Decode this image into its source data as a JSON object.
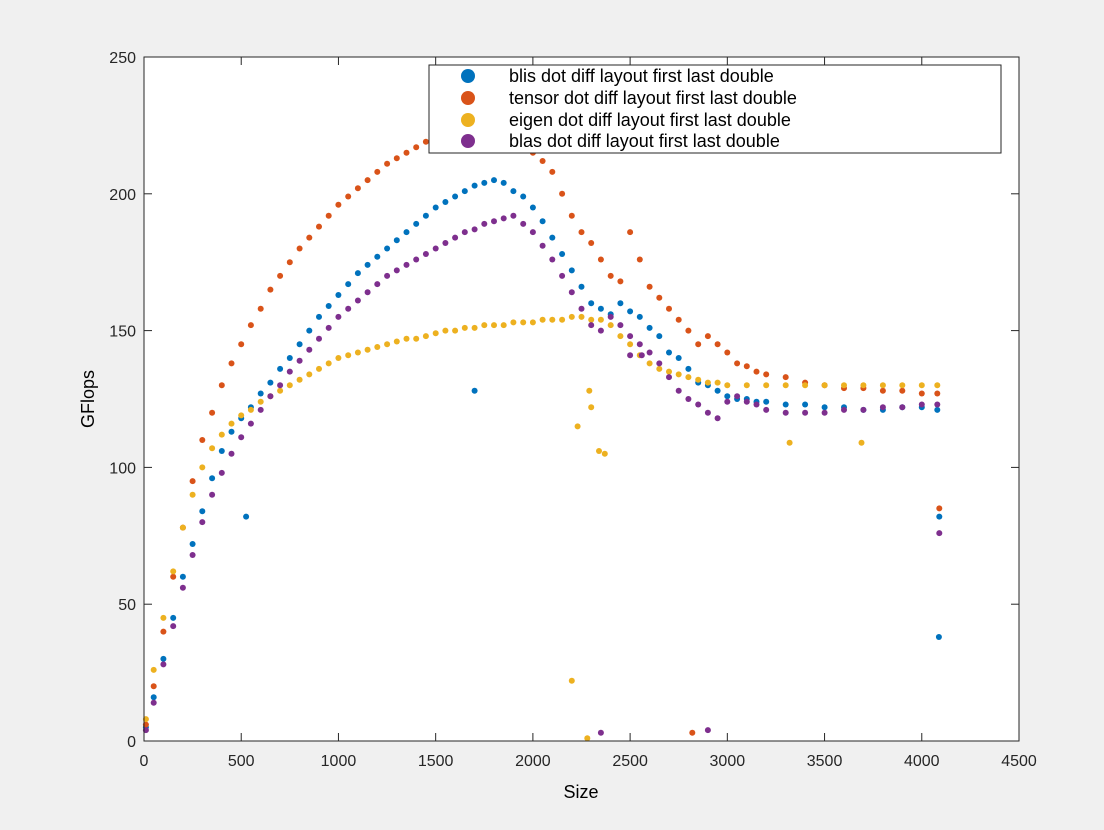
{
  "chart_data": {
    "type": "scatter",
    "xlabel": "Size",
    "ylabel": "GFlops",
    "xlim": [
      0,
      4500
    ],
    "ylim": [
      0,
      250
    ],
    "xticks": [
      "0",
      "500",
      "1000",
      "1500",
      "2000",
      "2500",
      "3000",
      "3500",
      "4000",
      "4500"
    ],
    "yticks": [
      "0",
      "50",
      "100",
      "150",
      "200",
      "250"
    ],
    "grid": false,
    "legend_position": "top-right",
    "series": [
      {
        "name": "blis dot diff layout first last double",
        "color": "#0072bd",
        "points": [
          [
            10,
            5
          ],
          [
            50,
            16
          ],
          [
            100,
            30
          ],
          [
            150,
            45
          ],
          [
            200,
            60
          ],
          [
            250,
            72
          ],
          [
            300,
            84
          ],
          [
            350,
            96
          ],
          [
            400,
            106
          ],
          [
            450,
            113
          ],
          [
            500,
            118
          ],
          [
            550,
            122
          ],
          [
            600,
            127
          ],
          [
            650,
            131
          ],
          [
            700,
            136
          ],
          [
            750,
            140
          ],
          [
            800,
            145
          ],
          [
            850,
            150
          ],
          [
            900,
            155
          ],
          [
            950,
            159
          ],
          [
            1000,
            163
          ],
          [
            1050,
            167
          ],
          [
            1100,
            171
          ],
          [
            1150,
            174
          ],
          [
            1200,
            177
          ],
          [
            1250,
            180
          ],
          [
            1300,
            183
          ],
          [
            1350,
            186
          ],
          [
            1400,
            189
          ],
          [
            1450,
            192
          ],
          [
            1500,
            195
          ],
          [
            1550,
            197
          ],
          [
            1600,
            199
          ],
          [
            1650,
            201
          ],
          [
            1700,
            203
          ],
          [
            1750,
            204
          ],
          [
            1800,
            205
          ],
          [
            1850,
            204
          ],
          [
            1900,
            201
          ],
          [
            1950,
            199
          ],
          [
            2000,
            195
          ],
          [
            2050,
            190
          ],
          [
            2100,
            184
          ],
          [
            2150,
            178
          ],
          [
            2200,
            172
          ],
          [
            2250,
            166
          ],
          [
            2300,
            160
          ],
          [
            2350,
            158
          ],
          [
            2400,
            156
          ],
          [
            2450,
            160
          ],
          [
            2500,
            157
          ],
          [
            2550,
            155
          ],
          [
            2600,
            151
          ],
          [
            2650,
            148
          ],
          [
            2700,
            142
          ],
          [
            2750,
            140
          ],
          [
            2800,
            136
          ],
          [
            2850,
            131
          ],
          [
            2900,
            130
          ],
          [
            2950,
            128
          ],
          [
            3000,
            126
          ],
          [
            3050,
            125
          ],
          [
            3100,
            125
          ],
          [
            3150,
            124
          ],
          [
            3200,
            124
          ],
          [
            3300,
            123
          ],
          [
            3400,
            123
          ],
          [
            3500,
            122
          ],
          [
            3600,
            122
          ],
          [
            3700,
            121
          ],
          [
            3800,
            121
          ],
          [
            3900,
            122
          ],
          [
            4000,
            122
          ],
          [
            4080,
            121
          ],
          [
            4090,
            82
          ],
          [
            4088,
            38
          ],
          [
            1700,
            128
          ],
          [
            525,
            82
          ]
        ]
      },
      {
        "name": "tensor dot diff layout first last double",
        "color": "#d95319",
        "points": [
          [
            10,
            6
          ],
          [
            50,
            20
          ],
          [
            100,
            40
          ],
          [
            150,
            60
          ],
          [
            200,
            78
          ],
          [
            250,
            95
          ],
          [
            300,
            110
          ],
          [
            350,
            120
          ],
          [
            400,
            130
          ],
          [
            450,
            138
          ],
          [
            500,
            145
          ],
          [
            550,
            152
          ],
          [
            600,
            158
          ],
          [
            650,
            165
          ],
          [
            700,
            170
          ],
          [
            750,
            175
          ],
          [
            800,
            180
          ],
          [
            850,
            184
          ],
          [
            900,
            188
          ],
          [
            950,
            192
          ],
          [
            1000,
            196
          ],
          [
            1050,
            199
          ],
          [
            1100,
            202
          ],
          [
            1150,
            205
          ],
          [
            1200,
            208
          ],
          [
            1250,
            211
          ],
          [
            1300,
            213
          ],
          [
            1350,
            215
          ],
          [
            1400,
            217
          ],
          [
            1450,
            219
          ],
          [
            1500,
            221
          ],
          [
            1550,
            222
          ],
          [
            1600,
            223
          ],
          [
            1650,
            224
          ],
          [
            1700,
            225
          ],
          [
            1750,
            226
          ],
          [
            1800,
            226
          ],
          [
            1850,
            222
          ],
          [
            1900,
            218
          ],
          [
            1950,
            216
          ],
          [
            2000,
            215
          ],
          [
            2050,
            212
          ],
          [
            2100,
            208
          ],
          [
            2150,
            200
          ],
          [
            2200,
            192
          ],
          [
            2250,
            186
          ],
          [
            2300,
            182
          ],
          [
            2350,
            176
          ],
          [
            2400,
            170
          ],
          [
            2450,
            168
          ],
          [
            2500,
            186
          ],
          [
            2550,
            176
          ],
          [
            2600,
            166
          ],
          [
            2650,
            162
          ],
          [
            2700,
            158
          ],
          [
            2750,
            154
          ],
          [
            2800,
            150
          ],
          [
            2850,
            145
          ],
          [
            2900,
            148
          ],
          [
            2950,
            145
          ],
          [
            3000,
            142
          ],
          [
            3050,
            138
          ],
          [
            3100,
            137
          ],
          [
            3150,
            135
          ],
          [
            3200,
            134
          ],
          [
            3300,
            133
          ],
          [
            3400,
            131
          ],
          [
            3500,
            130
          ],
          [
            3600,
            129
          ],
          [
            3700,
            129
          ],
          [
            3800,
            128
          ],
          [
            3900,
            128
          ],
          [
            4000,
            127
          ],
          [
            4080,
            127
          ],
          [
            4090,
            85
          ],
          [
            2820,
            3
          ]
        ]
      },
      {
        "name": "eigen dot diff layout first last double",
        "color": "#edb120",
        "points": [
          [
            10,
            8
          ],
          [
            50,
            26
          ],
          [
            100,
            45
          ],
          [
            150,
            62
          ],
          [
            200,
            78
          ],
          [
            250,
            90
          ],
          [
            300,
            100
          ],
          [
            350,
            107
          ],
          [
            400,
            112
          ],
          [
            450,
            116
          ],
          [
            500,
            119
          ],
          [
            550,
            121
          ],
          [
            600,
            124
          ],
          [
            650,
            126
          ],
          [
            700,
            128
          ],
          [
            750,
            130
          ],
          [
            800,
            132
          ],
          [
            850,
            134
          ],
          [
            900,
            136
          ],
          [
            950,
            138
          ],
          [
            1000,
            140
          ],
          [
            1050,
            141
          ],
          [
            1100,
            142
          ],
          [
            1150,
            143
          ],
          [
            1200,
            144
          ],
          [
            1250,
            145
          ],
          [
            1300,
            146
          ],
          [
            1350,
            147
          ],
          [
            1400,
            147
          ],
          [
            1450,
            148
          ],
          [
            1500,
            149
          ],
          [
            1550,
            150
          ],
          [
            1600,
            150
          ],
          [
            1650,
            151
          ],
          [
            1700,
            151
          ],
          [
            1750,
            152
          ],
          [
            1800,
            152
          ],
          [
            1850,
            152
          ],
          [
            1900,
            153
          ],
          [
            1950,
            153
          ],
          [
            2000,
            153
          ],
          [
            2050,
            154
          ],
          [
            2100,
            154
          ],
          [
            2150,
            154
          ],
          [
            2200,
            155
          ],
          [
            2250,
            155
          ],
          [
            2300,
            154
          ],
          [
            2350,
            154
          ],
          [
            2400,
            152
          ],
          [
            2450,
            148
          ],
          [
            2500,
            145
          ],
          [
            2550,
            141
          ],
          [
            2600,
            138
          ],
          [
            2650,
            136
          ],
          [
            2700,
            135
          ],
          [
            2750,
            134
          ],
          [
            2800,
            133
          ],
          [
            2850,
            132
          ],
          [
            2900,
            131
          ],
          [
            2950,
            131
          ],
          [
            3000,
            130
          ],
          [
            3100,
            130
          ],
          [
            3200,
            130
          ],
          [
            3300,
            130
          ],
          [
            3400,
            130
          ],
          [
            3500,
            130
          ],
          [
            3600,
            130
          ],
          [
            3700,
            130
          ],
          [
            3800,
            130
          ],
          [
            3900,
            130
          ],
          [
            4000,
            130
          ],
          [
            4080,
            130
          ],
          [
            2300,
            122
          ],
          [
            2290,
            128
          ],
          [
            2230,
            115
          ],
          [
            2340,
            106
          ],
          [
            2370,
            105
          ],
          [
            2200,
            22
          ],
          [
            2280,
            1
          ],
          [
            3320,
            109
          ],
          [
            3690,
            109
          ]
        ]
      },
      {
        "name": "blas dot diff layout first last double",
        "color": "#7e2f8e",
        "points": [
          [
            10,
            4
          ],
          [
            50,
            14
          ],
          [
            100,
            28
          ],
          [
            150,
            42
          ],
          [
            200,
            56
          ],
          [
            250,
            68
          ],
          [
            300,
            80
          ],
          [
            350,
            90
          ],
          [
            400,
            98
          ],
          [
            450,
            105
          ],
          [
            500,
            111
          ],
          [
            550,
            116
          ],
          [
            600,
            121
          ],
          [
            650,
            126
          ],
          [
            700,
            130
          ],
          [
            750,
            135
          ],
          [
            800,
            139
          ],
          [
            850,
            143
          ],
          [
            900,
            147
          ],
          [
            950,
            151
          ],
          [
            1000,
            155
          ],
          [
            1050,
            158
          ],
          [
            1100,
            161
          ],
          [
            1150,
            164
          ],
          [
            1200,
            167
          ],
          [
            1250,
            170
          ],
          [
            1300,
            172
          ],
          [
            1350,
            174
          ],
          [
            1400,
            176
          ],
          [
            1450,
            178
          ],
          [
            1500,
            180
          ],
          [
            1550,
            182
          ],
          [
            1600,
            184
          ],
          [
            1650,
            186
          ],
          [
            1700,
            187
          ],
          [
            1750,
            189
          ],
          [
            1800,
            190
          ],
          [
            1850,
            191
          ],
          [
            1900,
            192
          ],
          [
            1950,
            189
          ],
          [
            2000,
            186
          ],
          [
            2050,
            181
          ],
          [
            2100,
            176
          ],
          [
            2150,
            170
          ],
          [
            2200,
            164
          ],
          [
            2250,
            158
          ],
          [
            2300,
            152
          ],
          [
            2350,
            150
          ],
          [
            2400,
            155
          ],
          [
            2450,
            152
          ],
          [
            2500,
            148
          ],
          [
            2550,
            145
          ],
          [
            2600,
            142
          ],
          [
            2650,
            138
          ],
          [
            2700,
            133
          ],
          [
            2750,
            128
          ],
          [
            2800,
            125
          ],
          [
            2850,
            123
          ],
          [
            2900,
            120
          ],
          [
            2950,
            118
          ],
          [
            3000,
            124
          ],
          [
            3050,
            126
          ],
          [
            3100,
            124
          ],
          [
            3150,
            123
          ],
          [
            3200,
            121
          ],
          [
            3300,
            120
          ],
          [
            3400,
            120
          ],
          [
            3500,
            120
          ],
          [
            3600,
            121
          ],
          [
            3700,
            121
          ],
          [
            3800,
            122
          ],
          [
            3900,
            122
          ],
          [
            4000,
            123
          ],
          [
            4080,
            123
          ],
          [
            4090,
            76
          ],
          [
            2350,
            3
          ],
          [
            2900,
            4
          ],
          [
            2500,
            141
          ],
          [
            2560,
            141
          ]
        ]
      }
    ]
  }
}
